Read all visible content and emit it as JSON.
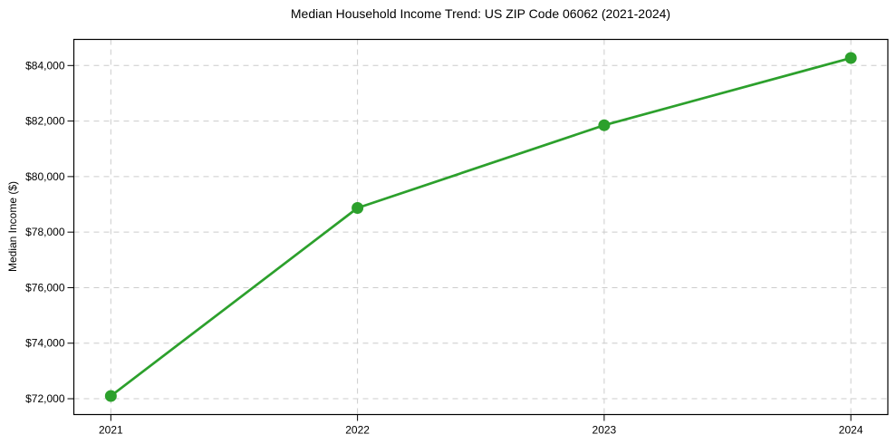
{
  "chart_data": {
    "type": "line",
    "title": "Median Household Income Trend: US ZIP Code 06062 (2021-2024)",
    "xlabel": "",
    "ylabel": "Median Income ($)",
    "x": [
      2021,
      2022,
      2023,
      2024
    ],
    "x_tick_labels": [
      "2021",
      "2022",
      "2023",
      "2024"
    ],
    "values": [
      72100,
      78870,
      81850,
      84270
    ],
    "xlim": [
      2020.85,
      2024.15
    ],
    "ylim": [
      71430,
      84940
    ],
    "yticks": [
      72000,
      74000,
      76000,
      78000,
      80000,
      82000,
      84000
    ],
    "y_tick_labels": [
      "$72,000",
      "$74,000",
      "$76,000",
      "$78,000",
      "$80,000",
      "$82,000",
      "$84,000"
    ],
    "grid": true,
    "grid_style": "dashed",
    "legend": "none",
    "line_color": "#2ca02c",
    "marker": "o",
    "marker_color": "#2ca02c",
    "grid_color": "#cccccc",
    "axis_color": "#000000",
    "text_color": "#000000",
    "background_color": "#ffffff"
  }
}
